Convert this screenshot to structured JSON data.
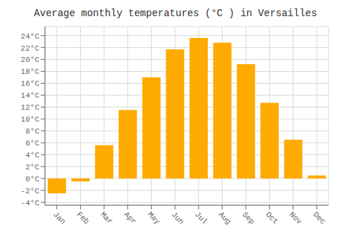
{
  "chart_data": {
    "type": "bar",
    "title": "Average monthly temperatures (°C ) in Versailles",
    "categories": [
      "Jan",
      "Feb",
      "Mar",
      "Apr",
      "May",
      "Jun",
      "Jul",
      "Aug",
      "Sep",
      "Oct",
      "Nov",
      "Dec"
    ],
    "values": [
      -2.5,
      -0.5,
      5.6,
      11.5,
      17.0,
      21.7,
      23.6,
      22.8,
      19.2,
      12.7,
      6.5,
      0.5
    ],
    "color": "#FFAA00",
    "ylim": [
      -4.5,
      25.5
    ],
    "yticks": [
      {
        "value": -4,
        "label": "-4°C"
      },
      {
        "value": -2,
        "label": "-2°C"
      },
      {
        "value": 0,
        "label": "0°C"
      },
      {
        "value": 2,
        "label": "2°C"
      },
      {
        "value": 4,
        "label": "4°C"
      },
      {
        "value": 6,
        "label": "6°C"
      },
      {
        "value": 8,
        "label": "8°C"
      },
      {
        "value": 10,
        "label": "10°C"
      },
      {
        "value": 12,
        "label": "12°C"
      },
      {
        "value": 14,
        "label": "14°C"
      },
      {
        "value": 16,
        "label": "16°C"
      },
      {
        "value": 18,
        "label": "18°C"
      },
      {
        "value": 20,
        "label": "20°C"
      },
      {
        "value": 22,
        "label": "22°C"
      },
      {
        "value": 24,
        "label": "24°C"
      }
    ],
    "grid": true
  }
}
